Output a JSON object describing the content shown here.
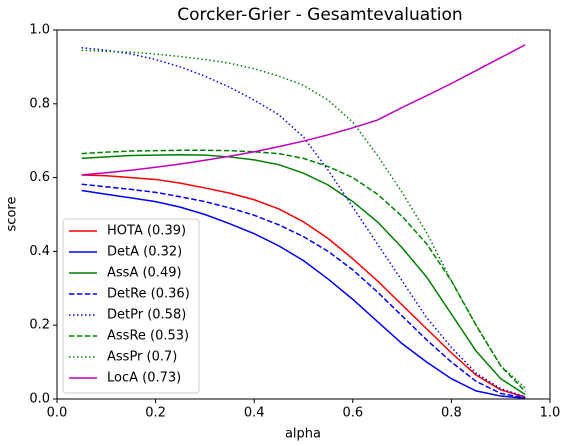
{
  "chart_data": {
    "type": "line",
    "title": "Corcker-Grier - Gesamtevaluation",
    "xlabel": "alpha",
    "ylabel": "score",
    "x": [
      0.05,
      0.1,
      0.15,
      0.2,
      0.25,
      0.3,
      0.35,
      0.4,
      0.45,
      0.5,
      0.55,
      0.6,
      0.65,
      0.7,
      0.75,
      0.8,
      0.85,
      0.9,
      0.95
    ],
    "xlim": [
      0,
      1
    ],
    "ylim": [
      0,
      1
    ],
    "xticks": [
      {
        "value": 0,
        "label": "0.0"
      },
      0.2,
      0.4,
      0.6,
      0.8,
      {
        "value": 1,
        "label": "1.0"
      }
    ],
    "yticks": [
      {
        "value": 0,
        "label": "0.0"
      },
      0.2,
      0.4,
      0.6,
      0.8,
      {
        "value": 1,
        "label": "1.0"
      }
    ],
    "legend": "lower left",
    "series": [
      {
        "name": "HOTA (0.39)",
        "color": "#ff0000",
        "linestyle": "solid",
        "values": [
          0.607,
          0.605,
          0.6,
          0.595,
          0.585,
          0.572,
          0.558,
          0.54,
          0.515,
          0.48,
          0.435,
          0.38,
          0.32,
          0.255,
          0.19,
          0.125,
          0.065,
          0.025,
          0.005
        ]
      },
      {
        "name": "DetA (0.32)",
        "color": "#0000ff",
        "linestyle": "solid",
        "values": [
          0.565,
          0.555,
          0.545,
          0.535,
          0.52,
          0.5,
          0.475,
          0.448,
          0.415,
          0.375,
          0.325,
          0.27,
          0.21,
          0.15,
          0.1,
          0.055,
          0.022,
          0.008,
          0.002
        ]
      },
      {
        "name": "AssA (0.49)",
        "color": "#008000",
        "linestyle": "solid",
        "values": [
          0.652,
          0.656,
          0.66,
          0.661,
          0.662,
          0.661,
          0.656,
          0.648,
          0.635,
          0.612,
          0.58,
          0.535,
          0.48,
          0.41,
          0.33,
          0.23,
          0.13,
          0.055,
          0.012
        ]
      },
      {
        "name": "DetRe (0.36)",
        "color": "#0000ff",
        "linestyle": "dashed",
        "values": [
          0.582,
          0.575,
          0.568,
          0.56,
          0.548,
          0.535,
          0.518,
          0.498,
          0.472,
          0.44,
          0.4,
          0.35,
          0.29,
          0.225,
          0.16,
          0.1,
          0.048,
          0.015,
          0.003
        ]
      },
      {
        "name": "DetPr (0.58)",
        "color": "#0000ff",
        "linestyle": "dotted",
        "values": [
          0.952,
          0.945,
          0.935,
          0.92,
          0.9,
          0.875,
          0.845,
          0.81,
          0.77,
          0.71,
          0.62,
          0.52,
          0.42,
          0.32,
          0.22,
          0.14,
          0.07,
          0.028,
          0.006
        ]
      },
      {
        "name": "AssRe (0.53)",
        "color": "#008000",
        "linestyle": "dashed",
        "values": [
          0.665,
          0.669,
          0.672,
          0.673,
          0.674,
          0.674,
          0.673,
          0.67,
          0.665,
          0.652,
          0.63,
          0.6,
          0.555,
          0.495,
          0.42,
          0.32,
          0.2,
          0.09,
          0.02
        ]
      },
      {
        "name": "AssPr (0.7)",
        "color": "#008000",
        "linestyle": "dotted",
        "values": [
          0.945,
          0.942,
          0.94,
          0.935,
          0.928,
          0.92,
          0.91,
          0.895,
          0.875,
          0.85,
          0.81,
          0.75,
          0.66,
          0.56,
          0.45,
          0.32,
          0.2,
          0.09,
          0.03
        ]
      },
      {
        "name": "LocA (0.73)",
        "color": "#bf00bf",
        "linestyle": "solid",
        "values": [
          0.607,
          0.613,
          0.62,
          0.628,
          0.637,
          0.647,
          0.658,
          0.67,
          0.684,
          0.699,
          0.716,
          0.735,
          0.756,
          0.79,
          0.822,
          0.855,
          0.89,
          0.925,
          0.96
        ]
      }
    ]
  }
}
